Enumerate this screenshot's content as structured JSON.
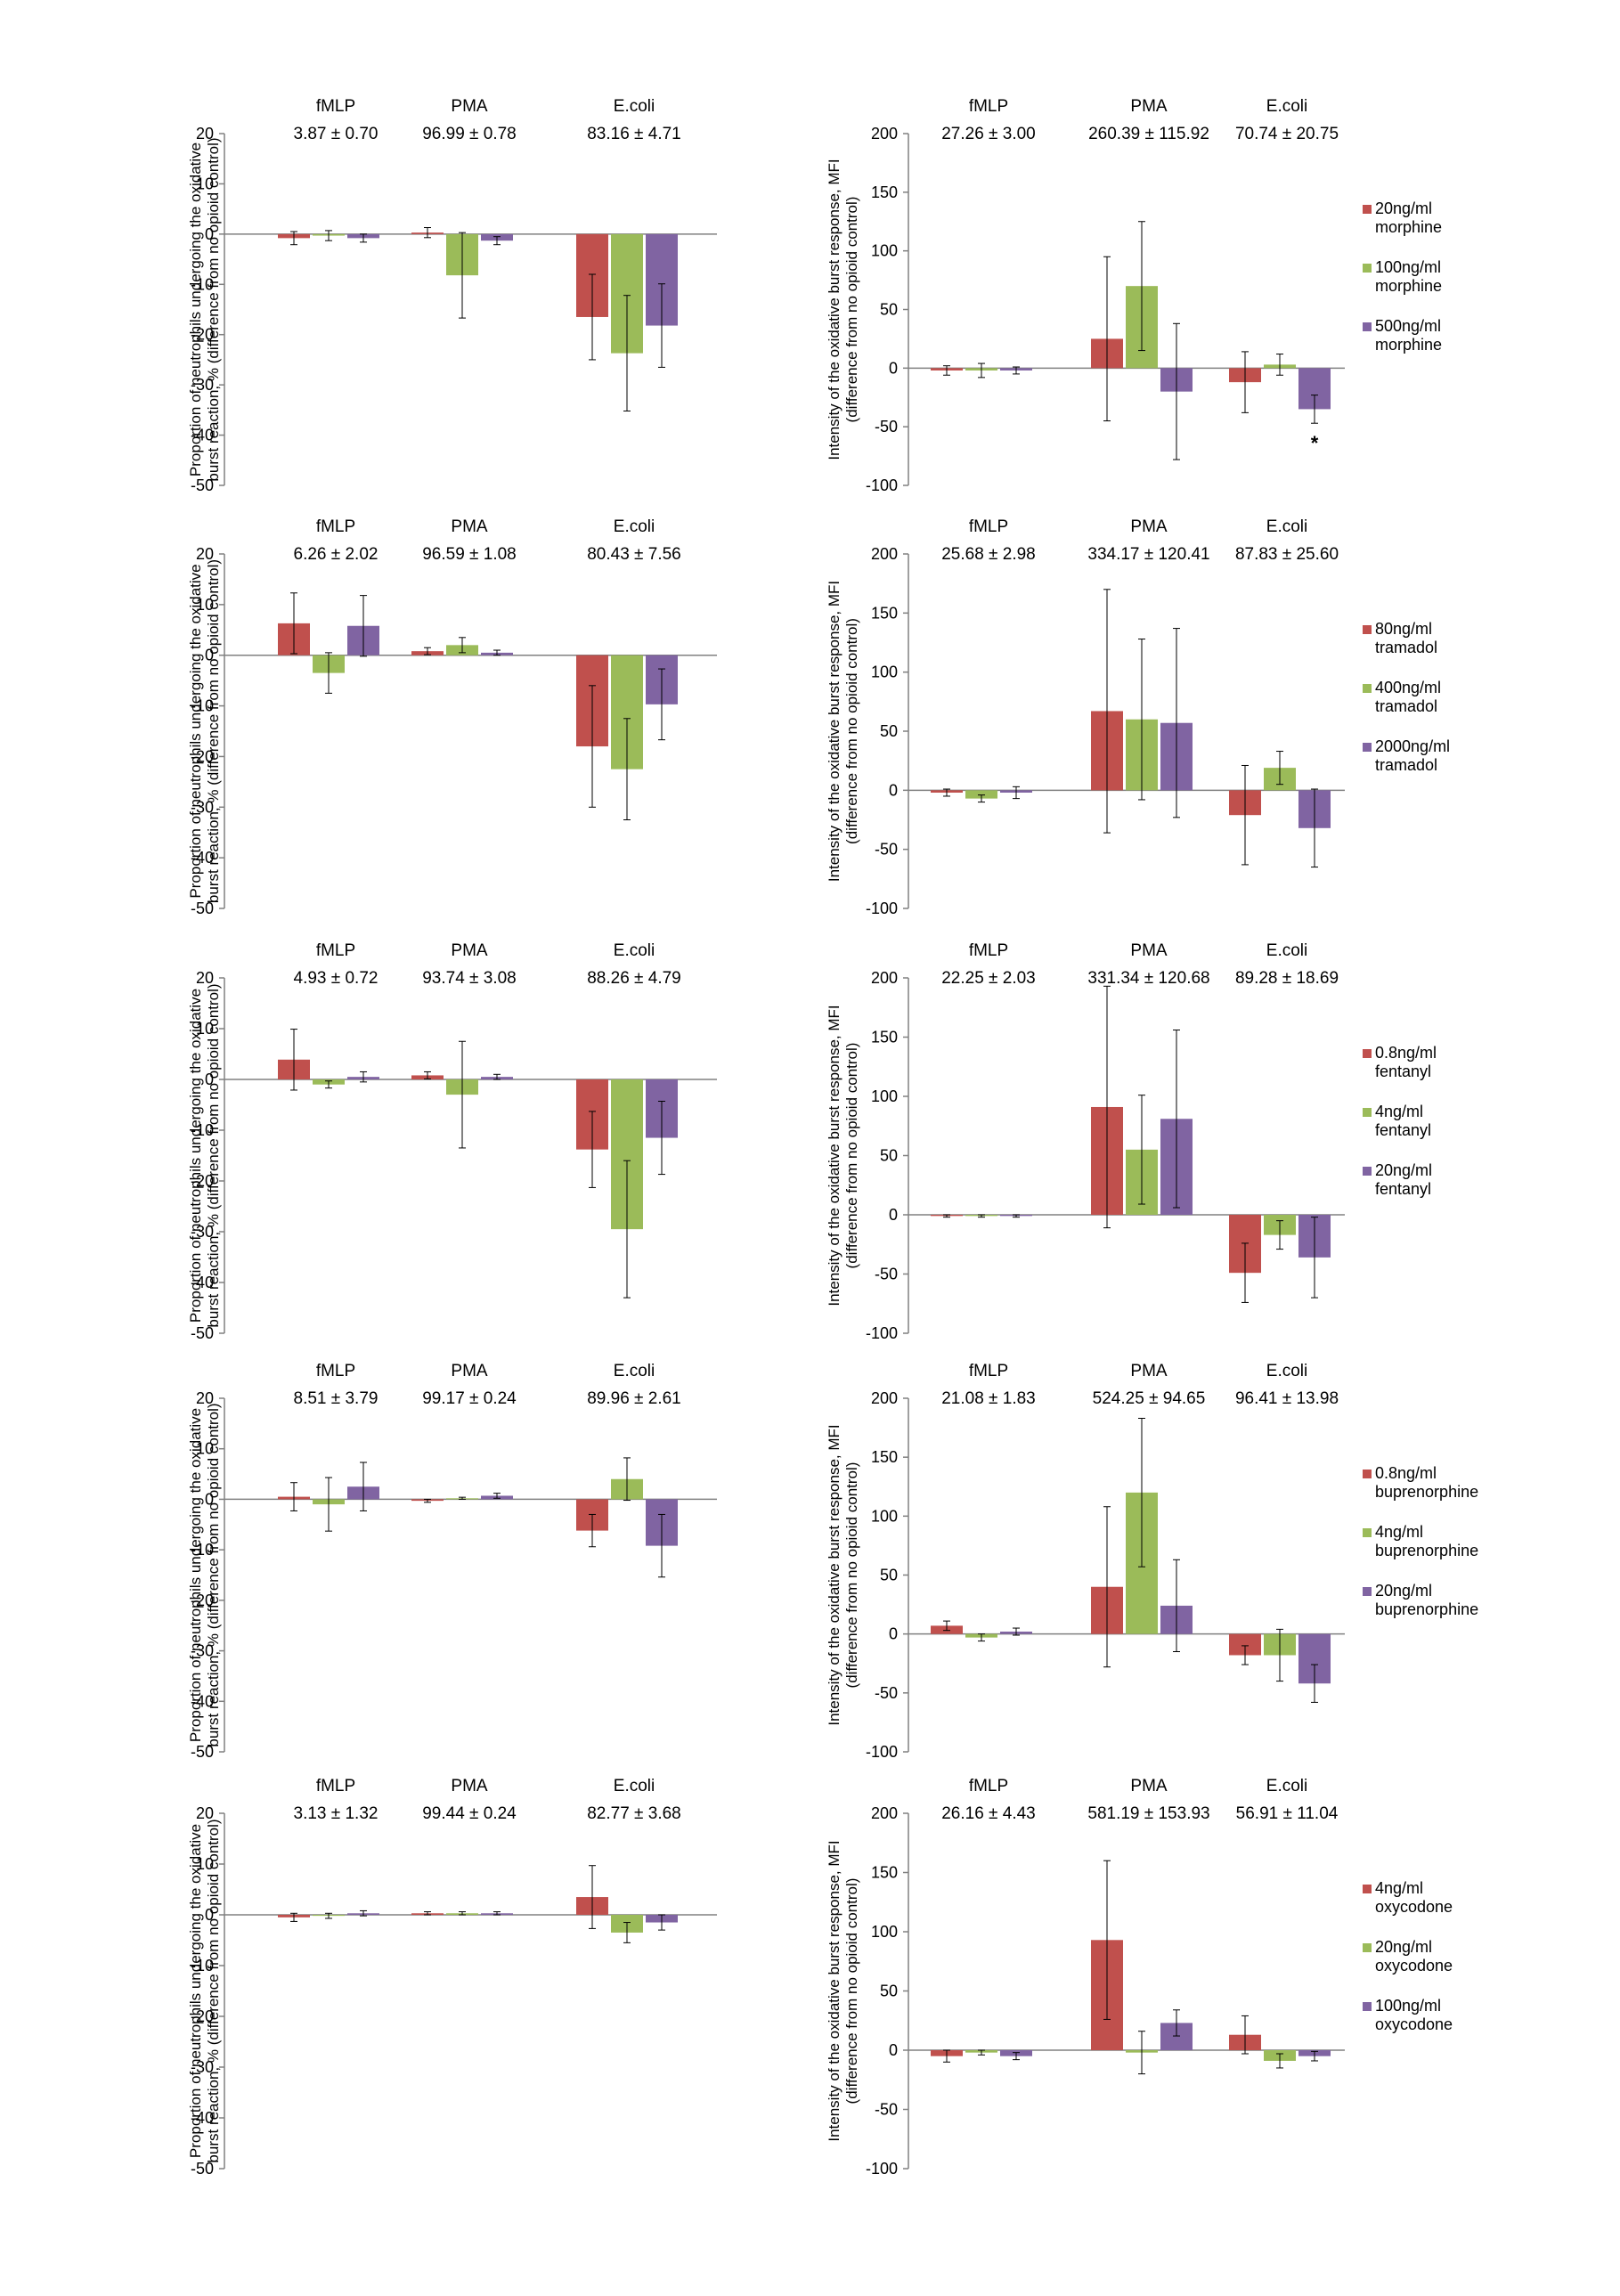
{
  "figure": {
    "colors": {
      "series1": "#c0504d",
      "series2": "#9bbb59",
      "series3": "#8064a2",
      "axis": "#808080",
      "error": "#000000"
    },
    "ylabel_left": [
      "Proportion of neutrophils undergoing the oxidative",
      "burst reaction, % (difference from no opioid control)"
    ],
    "ylabel_right": [
      "Intensity of the oxidative burst response, MFI",
      "(difference from no opioid control)"
    ]
  },
  "chart_data": [
    {
      "type": "bar",
      "panel": "morphine-proportion",
      "categories": [
        "fMLP",
        "PMA",
        "E.coli"
      ],
      "category_values": [
        "3.87 ± 0.70",
        "96.99 ± 0.78",
        "83.16 ± 4.71"
      ],
      "ylim": [
        -50,
        20
      ],
      "yticks": [
        20,
        10,
        0,
        -10,
        -20,
        -30,
        -40,
        -50
      ],
      "series": [
        {
          "values": [
            -0.8,
            0.3,
            -16.5
          ],
          "errors": [
            1.3,
            1.0,
            8.5
          ]
        },
        {
          "values": [
            -0.3,
            -8.2,
            -23.7
          ],
          "errors": [
            1.0,
            8.5,
            11.5
          ]
        },
        {
          "values": [
            -0.8,
            -1.3,
            -18.2
          ],
          "errors": [
            0.8,
            0.8,
            8.3
          ]
        }
      ]
    },
    {
      "type": "bar",
      "panel": "morphine-intensity",
      "categories": [
        "fMLP",
        "PMA",
        "E.coli"
      ],
      "category_values": [
        "27.26 ± 3.00",
        "260.39 ± 115.92",
        "70.74 ± 20.75"
      ],
      "ylim": [
        -100,
        200
      ],
      "yticks": [
        200,
        150,
        100,
        50,
        0,
        -50,
        -100
      ],
      "legend": [
        "20ng/ml\nmorphine",
        "100ng/ml\nmorphine",
        "500ng/ml\nmorphine"
      ],
      "series": [
        {
          "values": [
            -2,
            25,
            -12
          ],
          "errors": [
            4,
            70,
            26
          ]
        },
        {
          "values": [
            -2,
            70,
            3
          ],
          "errors": [
            6,
            55,
            9
          ]
        },
        {
          "values": [
            -2,
            -20,
            -35
          ],
          "errors": [
            3,
            58,
            12
          ]
        }
      ],
      "annotations": [
        {
          "text": "*",
          "series": 2,
          "category": 2
        }
      ]
    },
    {
      "type": "bar",
      "panel": "tramadol-proportion",
      "categories": [
        "fMLP",
        "PMA",
        "E.coli"
      ],
      "category_values": [
        "6.26 ± 2.02",
        "96.59 ± 1.08",
        "80.43 ± 7.56"
      ],
      "ylim": [
        -50,
        20
      ],
      "yticks": [
        20,
        10,
        0,
        -10,
        -20,
        -30,
        -40,
        -50
      ],
      "series": [
        {
          "values": [
            6.3,
            0.8,
            -18.0
          ],
          "errors": [
            6.0,
            0.7,
            12.0
          ]
        },
        {
          "values": [
            -3.5,
            2.0,
            -22.5
          ],
          "errors": [
            4.0,
            1.5,
            10.0
          ]
        },
        {
          "values": [
            5.8,
            0.5,
            -9.7
          ],
          "errors": [
            6.0,
            0.5,
            7.0
          ]
        }
      ]
    },
    {
      "type": "bar",
      "panel": "tramadol-intensity",
      "categories": [
        "fMLP",
        "PMA",
        "E.coli"
      ],
      "category_values": [
        "25.68 ± 2.98",
        "334.17 ± 120.41",
        "87.83 ± 25.60"
      ],
      "ylim": [
        -100,
        200
      ],
      "yticks": [
        200,
        150,
        100,
        50,
        0,
        -50,
        -100
      ],
      "legend": [
        "80ng/ml\ntramadol",
        "400ng/ml\ntramadol",
        "2000ng/ml\ntramadol"
      ],
      "series": [
        {
          "values": [
            -2,
            67,
            -21
          ],
          "errors": [
            3,
            103,
            42
          ]
        },
        {
          "values": [
            -7,
            60,
            19
          ],
          "errors": [
            3,
            68,
            14
          ]
        },
        {
          "values": [
            -2,
            57,
            -32
          ],
          "errors": [
            5,
            80,
            33
          ]
        }
      ]
    },
    {
      "type": "bar",
      "panel": "fentanyl-proportion",
      "categories": [
        "fMLP",
        "PMA",
        "E.coli"
      ],
      "category_values": [
        "4.93 ± 0.72",
        "93.74 ± 3.08",
        "88.26 ± 4.79"
      ],
      "ylim": [
        -50,
        20
      ],
      "yticks": [
        20,
        10,
        0,
        -10,
        -20,
        -30,
        -40,
        -50
      ],
      "series": [
        {
          "values": [
            3.9,
            0.8,
            -13.8
          ],
          "errors": [
            6.0,
            0.7,
            7.5
          ]
        },
        {
          "values": [
            -1.0,
            -3.0,
            -29.5
          ],
          "errors": [
            0.7,
            10.5,
            13.5
          ]
        },
        {
          "values": [
            0.5,
            0.5,
            -11.5
          ],
          "errors": [
            1.0,
            0.5,
            7.2
          ]
        }
      ]
    },
    {
      "type": "bar",
      "panel": "fentanyl-intensity",
      "categories": [
        "fMLP",
        "PMA",
        "E.coli"
      ],
      "category_values": [
        "22.25 ± 2.03",
        "331.34 ± 120.68",
        "89.28 ± 18.69"
      ],
      "ylim": [
        -100,
        200
      ],
      "yticks": [
        200,
        150,
        100,
        50,
        0,
        -50,
        -100
      ],
      "legend": [
        "0.8ng/ml\nfentanyl",
        "4ng/ml\nfentanyl",
        "20ng/ml\nfentanyl"
      ],
      "series": [
        {
          "values": [
            -1,
            91,
            -49
          ],
          "errors": [
            1,
            102,
            25
          ]
        },
        {
          "values": [
            -1,
            55,
            -17
          ],
          "errors": [
            1,
            46,
            12
          ]
        },
        {
          "values": [
            -1,
            81,
            -36
          ],
          "errors": [
            1,
            75,
            34
          ]
        }
      ]
    },
    {
      "type": "bar",
      "panel": "buprenorphine-proportion",
      "categories": [
        "fMLP",
        "PMA",
        "E.coli"
      ],
      "category_values": [
        "8.51 ± 3.79",
        "99.17 ± 0.24",
        "89.96 ± 2.61"
      ],
      "ylim": [
        -50,
        20
      ],
      "yticks": [
        20,
        10,
        0,
        -10,
        -20,
        -30,
        -40,
        -50
      ],
      "series": [
        {
          "values": [
            0.5,
            -0.3,
            -6.2
          ],
          "errors": [
            2.8,
            0.3,
            3.2
          ]
        },
        {
          "values": [
            -1.0,
            0.2,
            4.0
          ],
          "errors": [
            5.3,
            0.2,
            4.2
          ]
        },
        {
          "values": [
            2.5,
            0.7,
            -9.2
          ],
          "errors": [
            4.8,
            0.5,
            6.2
          ]
        }
      ]
    },
    {
      "type": "bar",
      "panel": "buprenorphine-intensity",
      "categories": [
        "fMLP",
        "PMA",
        "E.coli"
      ],
      "category_values": [
        "21.08 ± 1.83",
        "524.25 ± 94.65",
        "96.41 ± 13.98"
      ],
      "ylim": [
        -100,
        200
      ],
      "yticks": [
        200,
        150,
        100,
        50,
        0,
        -50,
        -100
      ],
      "legend": [
        "0.8ng/ml\nbuprenorphine",
        "4ng/ml\nbuprenorphine",
        "20ng/ml\nbuprenorphine"
      ],
      "series": [
        {
          "values": [
            7,
            40,
            -18
          ],
          "errors": [
            4,
            68,
            8
          ]
        },
        {
          "values": [
            -3,
            120,
            -18
          ],
          "errors": [
            3,
            63,
            22
          ]
        },
        {
          "values": [
            2,
            24,
            -42
          ],
          "errors": [
            3,
            39,
            16
          ]
        }
      ]
    },
    {
      "type": "bar",
      "panel": "oxycodone-proportion",
      "categories": [
        "fMLP",
        "PMA",
        "E.coli"
      ],
      "category_values": [
        "3.13 ± 1.32",
        "99.44 ± 0.24",
        "82.77 ± 3.68"
      ],
      "ylim": [
        -50,
        20
      ],
      "yticks": [
        20,
        10,
        0,
        -10,
        -20,
        -30,
        -40,
        -50
      ],
      "series": [
        {
          "values": [
            -0.5,
            0.3,
            3.5
          ],
          "errors": [
            0.8,
            0.3,
            6.2
          ]
        },
        {
          "values": [
            -0.2,
            0.3,
            -3.5
          ],
          "errors": [
            0.5,
            0.3,
            2.0
          ]
        },
        {
          "values": [
            0.3,
            0.3,
            -1.5
          ],
          "errors": [
            0.5,
            0.3,
            1.5
          ]
        }
      ]
    },
    {
      "type": "bar",
      "panel": "oxycodone-intensity",
      "categories": [
        "fMLP",
        "PMA",
        "E.coli"
      ],
      "category_values": [
        "26.16 ± 4.43",
        "581.19 ± 153.93",
        "56.91 ± 11.04"
      ],
      "ylim": [
        -100,
        200
      ],
      "yticks": [
        200,
        150,
        100,
        50,
        0,
        -50,
        -100
      ],
      "legend": [
        "4ng/ml\noxycodone",
        "20ng/ml\noxycodone",
        "100ng/ml\noxycodone"
      ],
      "series": [
        {
          "values": [
            -5,
            93,
            13
          ],
          "errors": [
            5,
            67,
            16
          ]
        },
        {
          "values": [
            -2,
            -2,
            -9
          ],
          "errors": [
            2,
            18,
            6
          ]
        },
        {
          "values": [
            -5,
            23,
            -5
          ],
          "errors": [
            3,
            11,
            4
          ]
        }
      ]
    }
  ]
}
